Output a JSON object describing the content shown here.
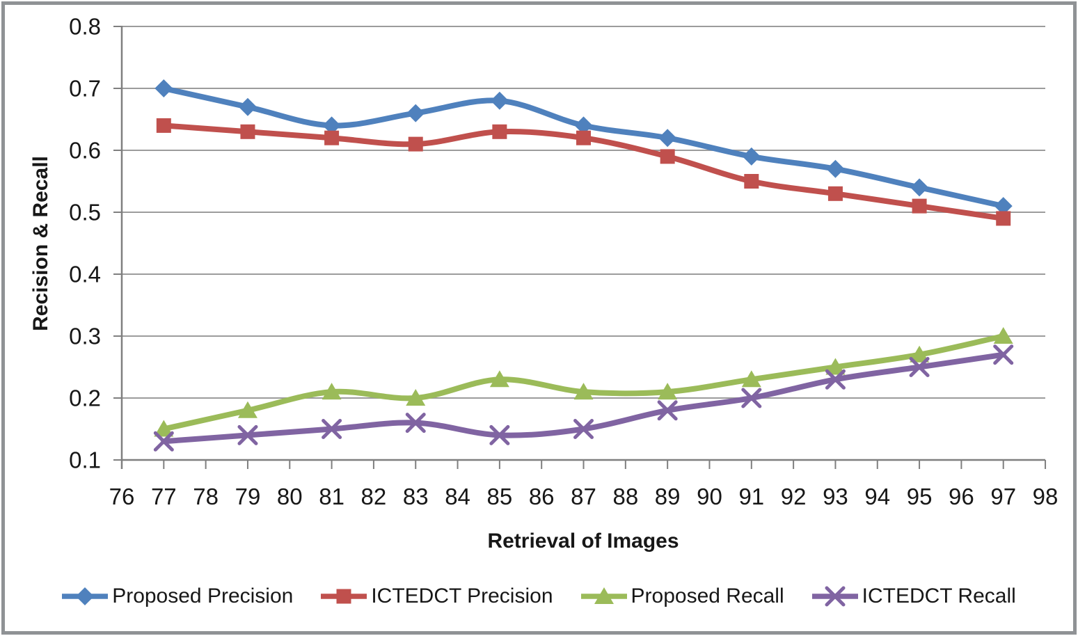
{
  "figure": {
    "background_color": "#ffffff",
    "frame_border_color": "#8f9295",
    "gridline_color": "#9c9c9c",
    "axis_line_color": "#7f7f7f",
    "text_color": "#171717"
  },
  "chart_data": {
    "type": "line",
    "title": "",
    "xlabel": "Retrieval of Images",
    "ylabel": "Recision & Recall",
    "smoothed_lines": true,
    "grid": true,
    "legend_position": "bottom",
    "xlim": [
      76,
      98
    ],
    "ylim": [
      0.1,
      0.8
    ],
    "x_tick_labels": [
      76,
      77,
      78,
      79,
      80,
      81,
      82,
      83,
      84,
      85,
      86,
      87,
      88,
      89,
      90,
      91,
      92,
      93,
      94,
      95,
      96,
      97,
      98
    ],
    "y_tick_labels": [
      "0.8",
      "0.7",
      "0.6",
      "0.5",
      "0.4",
      "0.3",
      "0.2",
      "0.1"
    ],
    "x": [
      77,
      79,
      81,
      83,
      85,
      87,
      89,
      91,
      93,
      95,
      97
    ],
    "series": [
      {
        "name": "Proposed Precision",
        "color": "#4F81BD",
        "marker": "diamond",
        "values": [
          0.7,
          0.67,
          0.64,
          0.66,
          0.68,
          0.64,
          0.62,
          0.59,
          0.57,
          0.54,
          0.51
        ]
      },
      {
        "name": "ICTEDCT Precision",
        "color": "#C0504D",
        "marker": "square",
        "values": [
          0.64,
          0.63,
          0.62,
          0.61,
          0.63,
          0.62,
          0.59,
          0.55,
          0.53,
          0.51,
          0.49
        ]
      },
      {
        "name": "Proposed Recall",
        "color": "#9BBB59",
        "marker": "triangle",
        "values": [
          0.15,
          0.18,
          0.21,
          0.2,
          0.23,
          0.21,
          0.21,
          0.23,
          0.25,
          0.27,
          0.3
        ]
      },
      {
        "name": "ICTEDCT Recall",
        "color": "#8064A2",
        "marker": "x",
        "values": [
          0.13,
          0.14,
          0.15,
          0.16,
          0.14,
          0.15,
          0.18,
          0.2,
          0.23,
          0.25,
          0.27
        ]
      }
    ]
  }
}
